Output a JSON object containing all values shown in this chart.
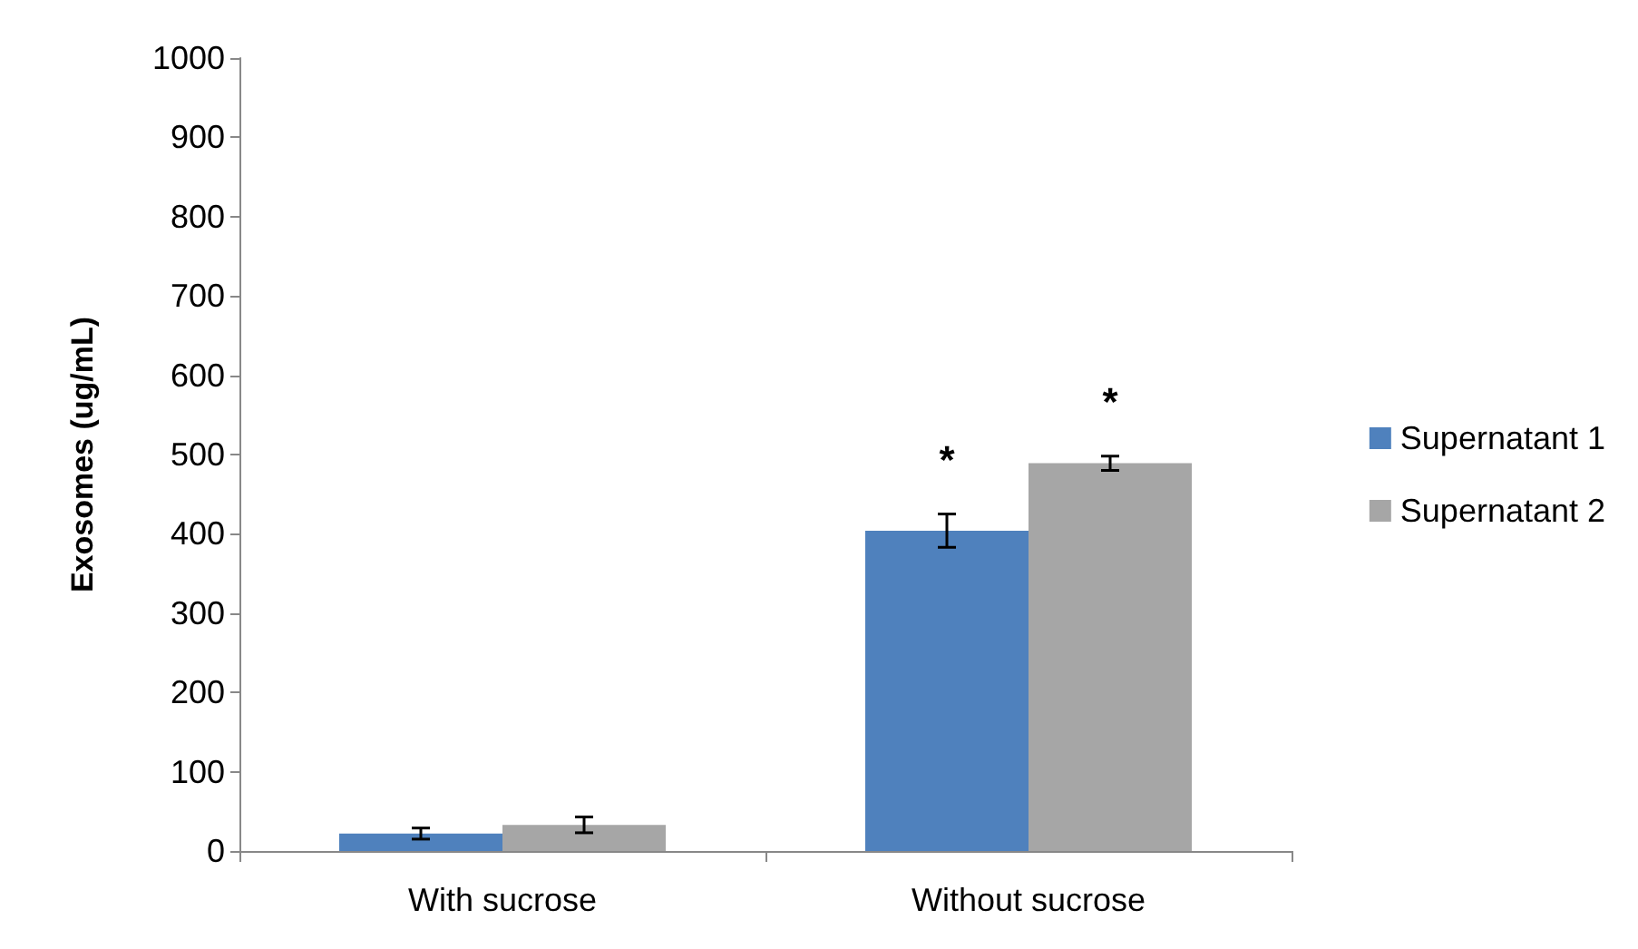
{
  "chart_data": {
    "type": "bar",
    "ylabel": "Exosomes (ug/mL)",
    "categories": [
      "With sucrose",
      "Without sucrose"
    ],
    "series": [
      {
        "name": "Supernatant 1",
        "color": "#4f81bd",
        "values": [
          22,
          404
        ],
        "errors": [
          7,
          21
        ]
      },
      {
        "name": "Supernatant 2",
        "color": "#a6a6a6",
        "values": [
          33,
          489
        ],
        "errors": [
          10,
          9
        ]
      }
    ],
    "ylim": [
      0,
      1000
    ],
    "yticks": [
      0,
      100,
      200,
      300,
      400,
      500,
      600,
      700,
      800,
      900,
      1000
    ],
    "grid": false,
    "legend": "right",
    "annotations": [
      {
        "text": "*",
        "x": "Without sucrose",
        "y": 425
      },
      {
        "text": "*",
        "x": "Without sucrose",
        "y": 498
      }
    ]
  }
}
